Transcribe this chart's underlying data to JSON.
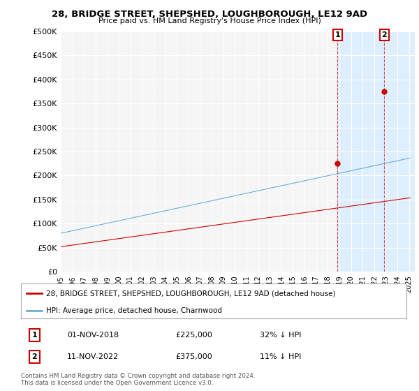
{
  "title": "28, BRIDGE STREET, SHEPSHED, LOUGHBOROUGH, LE12 9AD",
  "subtitle": "Price paid vs. HM Land Registry's House Price Index (HPI)",
  "hpi_color": "#6baed6",
  "price_color": "#cc0000",
  "background_color": "#ffffff",
  "plot_bg_color": "#f5f5f5",
  "highlight_bg_color": "#ddeeff",
  "legend_label_price": "28, BRIDGE STREET, SHEPSHED, LOUGHBOROUGH, LE12 9AD (detached house)",
  "legend_label_hpi": "HPI: Average price, detached house, Charnwood",
  "annotation1_date": "01-NOV-2018",
  "annotation1_price": "£225,000",
  "annotation1_hpi": "32% ↓ HPI",
  "annotation2_date": "11-NOV-2022",
  "annotation2_price": "£375,000",
  "annotation2_hpi": "11% ↓ HPI",
  "footer": "Contains HM Land Registry data © Crown copyright and database right 2024.\nThis data is licensed under the Open Government Licence v3.0.",
  "ylim": [
    0,
    500000
  ],
  "yticks": [
    0,
    50000,
    100000,
    150000,
    200000,
    250000,
    300000,
    350000,
    400000,
    450000,
    500000
  ],
  "xmin": 1995.0,
  "xmax": 2025.5,
  "purchase1_x": 2018.833,
  "purchase1_y": 225000,
  "purchase2_x": 2022.875,
  "purchase2_y": 375000,
  "highlight_x1": 2018.833,
  "highlight_x2": 2022.875,
  "highlight_x3": 2025.5
}
